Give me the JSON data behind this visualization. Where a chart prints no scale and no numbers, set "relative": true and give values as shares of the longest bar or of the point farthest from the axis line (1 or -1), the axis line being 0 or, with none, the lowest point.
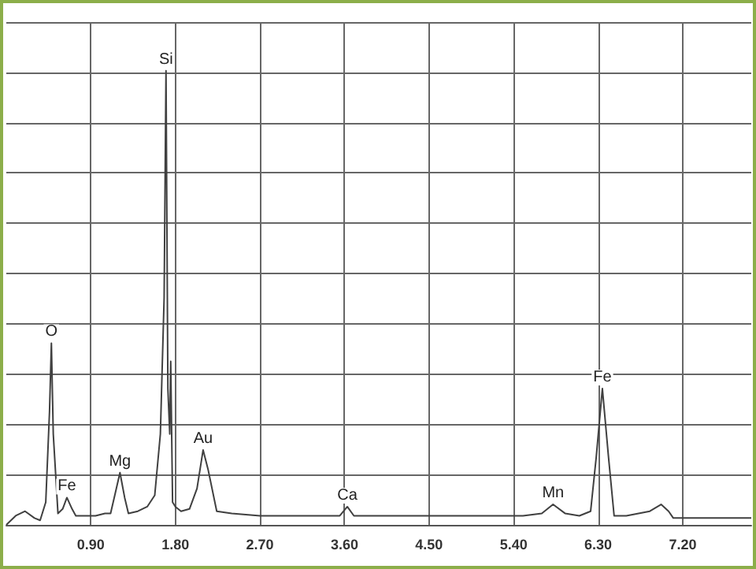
{
  "chart_data": {
    "type": "line",
    "relative": true,
    "grid": true,
    "marker": "none",
    "line_style": "solid",
    "xlim": [
      0,
      7.93
    ],
    "xticks": [
      {
        "value": 0.9,
        "label": "0.90"
      },
      {
        "value": 1.8,
        "label": "1.80"
      },
      {
        "value": 2.7,
        "label": "2.70"
      },
      {
        "value": 3.6,
        "label": "3.60"
      },
      {
        "value": 4.5,
        "label": "4.50"
      },
      {
        "value": 5.4,
        "label": "5.40"
      },
      {
        "value": 6.3,
        "label": "6.30"
      },
      {
        "value": 7.2,
        "label": "7.20"
      }
    ],
    "series": [
      {
        "color": "#404040",
        "x": [
          0,
          0.1,
          0.2,
          0.3,
          0.36,
          0.42,
          0.46,
          0.48,
          0.5,
          0.55,
          0.6,
          0.645,
          0.7,
          0.74,
          0.85,
          0.95,
          1.05,
          1.11,
          1.16,
          1.21,
          1.26,
          1.3,
          1.4,
          1.5,
          1.58,
          1.64,
          1.68,
          1.7,
          1.72,
          1.74,
          1.75,
          1.77,
          1.8,
          1.86,
          1.95,
          2.03,
          2.095,
          2.15,
          2.24,
          2.4,
          2.7,
          3.0,
          3.3,
          3.55,
          3.63,
          3.7,
          4.0,
          4.5,
          5.0,
          5.5,
          5.7,
          5.82,
          5.95,
          6.1,
          6.22,
          6.28,
          6.345,
          6.41,
          6.47,
          6.6,
          6.85,
          6.97,
          7.05,
          7.1,
          7.4,
          7.7,
          7.93
        ],
        "values": [
          0.0,
          0.02,
          0.03,
          0.015,
          0.01,
          0.05,
          0.25,
          0.4,
          0.2,
          0.025,
          0.035,
          0.06,
          0.035,
          0.02,
          0.02,
          0.02,
          0.025,
          0.025,
          0.07,
          0.115,
          0.06,
          0.025,
          0.03,
          0.04,
          0.065,
          0.2,
          0.5,
          1.0,
          0.3,
          0.2,
          0.36,
          0.05,
          0.04,
          0.03,
          0.035,
          0.08,
          0.165,
          0.12,
          0.03,
          0.025,
          0.02,
          0.02,
          0.02,
          0.02,
          0.04,
          0.02,
          0.02,
          0.02,
          0.02,
          0.02,
          0.025,
          0.045,
          0.025,
          0.02,
          0.03,
          0.15,
          0.3,
          0.15,
          0.02,
          0.02,
          0.03,
          0.045,
          0.03,
          0.015,
          0.015,
          0.015,
          0.015
        ]
      }
    ],
    "annotations": [
      {
        "text": "O",
        "x": 0.48,
        "y": 0.4
      },
      {
        "text": "Fe",
        "x": 0.645,
        "y": 0.06
      },
      {
        "text": "Mg",
        "x": 1.21,
        "y": 0.115
      },
      {
        "text": "Si",
        "x": 1.7,
        "y": 1.0
      },
      {
        "text": "Au",
        "x": 2.095,
        "y": 0.165
      },
      {
        "text": "Ca",
        "x": 3.63,
        "y": 0.04
      },
      {
        "text": "Mn",
        "x": 5.82,
        "y": 0.045
      },
      {
        "text": "Fe",
        "x": 6.345,
        "y": 0.3
      }
    ]
  }
}
